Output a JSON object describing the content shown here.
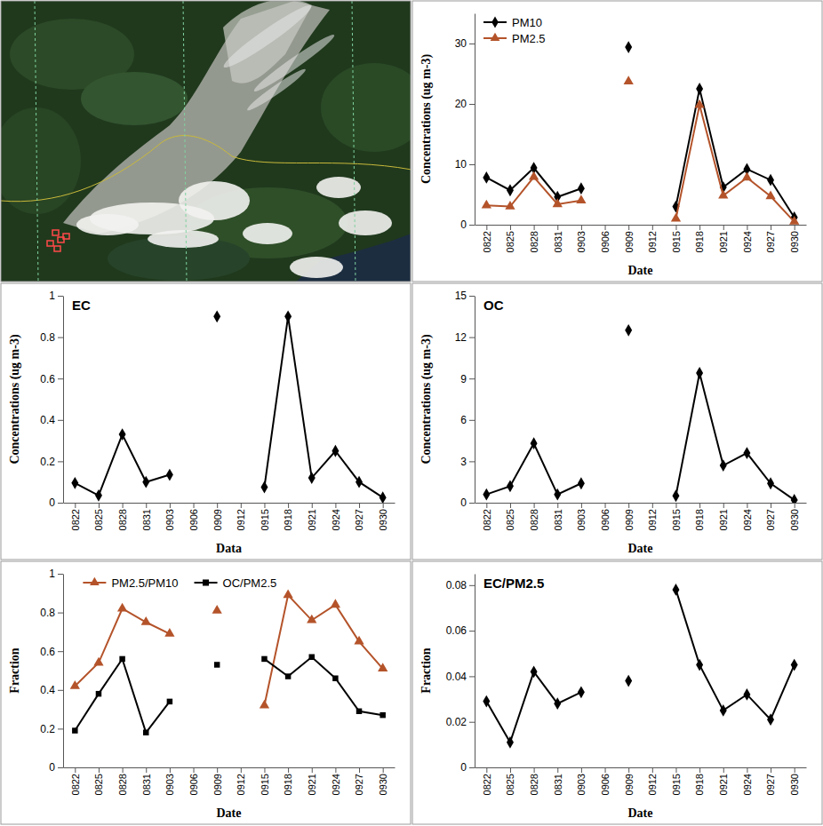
{
  "chart_data": [
    {
      "type": "line",
      "x_label": "Date",
      "y_label": "Concentrations (ug m-3)",
      "categories": [
        "0822",
        "0825",
        "0828",
        "0831",
        "0903",
        "0906",
        "0909",
        "0912",
        "0915",
        "0918",
        "0921",
        "0924",
        "0927",
        "0930"
      ],
      "series": [
        {
          "name": "PM10",
          "color": "#000000",
          "marker": "diamond",
          "values": [
            7.8,
            5.7,
            9.4,
            4.6,
            6.0,
            null,
            29.4,
            null,
            3.0,
            22.5,
            6.2,
            9.2,
            7.4,
            1.2
          ]
        },
        {
          "name": "PM2.5",
          "color": "#b4532a",
          "marker": "triangle",
          "values": [
            3.2,
            3.0,
            7.9,
            3.4,
            4.0,
            null,
            23.7,
            null,
            1.0,
            19.8,
            4.8,
            7.8,
            4.7,
            0.5
          ]
        }
      ],
      "ylim": [
        0,
        35
      ],
      "yticks": [
        0,
        10,
        20,
        30
      ],
      "legend": "top-left"
    },
    {
      "type": "line",
      "title": "EC",
      "x_label": "Data",
      "y_label": "Concentrations (ug m-3)",
      "categories": [
        "0822",
        "0825",
        "0828",
        "0831",
        "0903",
        "0906",
        "0909",
        "0912",
        "0915",
        "0918",
        "0921",
        "0924",
        "0927",
        "0930"
      ],
      "series": [
        {
          "color": "#000000",
          "marker": "diamond",
          "values": [
            0.095,
            0.035,
            0.33,
            0.1,
            0.135,
            null,
            0.9,
            null,
            0.075,
            0.9,
            0.12,
            0.25,
            0.1,
            0.025
          ]
        }
      ],
      "ylim": [
        0,
        1
      ],
      "yticks": [
        0,
        0.2,
        0.4,
        0.6,
        0.8,
        1
      ]
    },
    {
      "type": "line",
      "title": "OC",
      "x_label": "Date",
      "y_label": "Concentrations (ug m-3)",
      "categories": [
        "0822",
        "0825",
        "0828",
        "0831",
        "0903",
        "0906",
        "0909",
        "0912",
        "0915",
        "0918",
        "0921",
        "0924",
        "0927",
        "0930"
      ],
      "series": [
        {
          "color": "#000000",
          "marker": "diamond",
          "values": [
            0.6,
            1.2,
            4.3,
            0.6,
            1.4,
            null,
            12.5,
            null,
            0.5,
            9.4,
            2.7,
            3.6,
            1.4,
            0.2
          ]
        }
      ],
      "ylim": [
        0,
        15
      ],
      "yticks": [
        0,
        3,
        6,
        9,
        12,
        15
      ]
    },
    {
      "type": "line",
      "x_label": "Date",
      "y_label": "Fraction",
      "categories": [
        "0822",
        "0825",
        "0828",
        "0831",
        "0903",
        "0906",
        "0909",
        "0912",
        "0915",
        "0918",
        "0921",
        "0924",
        "0927",
        "0930"
      ],
      "series": [
        {
          "name": "PM2.5/PM10",
          "color": "#b4532a",
          "marker": "triangle",
          "values": [
            0.42,
            0.54,
            0.82,
            0.75,
            0.69,
            null,
            0.81,
            null,
            0.32,
            0.89,
            0.76,
            0.84,
            0.65,
            0.51
          ]
        },
        {
          "name": "OC/PM2.5",
          "color": "#000000",
          "marker": "square",
          "values": [
            0.19,
            0.38,
            0.56,
            0.18,
            0.34,
            null,
            0.53,
            null,
            0.56,
            0.47,
            0.57,
            0.46,
            0.29,
            0.27
          ]
        }
      ],
      "ylim": [
        0,
        1
      ],
      "yticks": [
        0,
        0.2,
        0.4,
        0.6,
        0.8,
        1
      ],
      "legend": "top"
    },
    {
      "type": "line",
      "title": "EC/PM2.5",
      "x_label": "Date",
      "y_label": "Fraction",
      "categories": [
        "0822",
        "0825",
        "0828",
        "0831",
        "0903",
        "0906",
        "0909",
        "0912",
        "0915",
        "0918",
        "0921",
        "0924",
        "0927",
        "0930"
      ],
      "series": [
        {
          "color": "#000000",
          "marker": "diamond",
          "values": [
            0.029,
            0.011,
            0.042,
            0.028,
            0.033,
            null,
            0.038,
            null,
            0.078,
            0.045,
            0.025,
            0.032,
            0.021,
            0.045
          ]
        }
      ],
      "ylim": [
        0,
        0.085
      ],
      "yticks": [
        0,
        0.02,
        0.04,
        0.06,
        0.08
      ]
    }
  ]
}
